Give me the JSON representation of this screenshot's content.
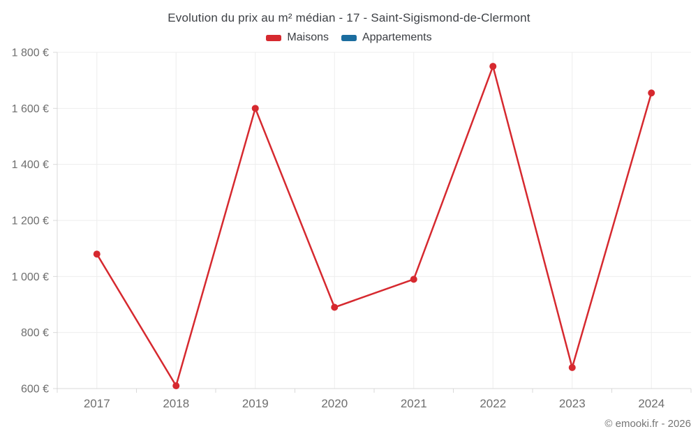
{
  "title": "Evolution du prix au m² médian - 17 - Saint-Sigismond-de-Clermont",
  "legend": [
    {
      "label": "Maisons",
      "color": "#d6292f"
    },
    {
      "label": "Appartements",
      "color": "#1b6d9f"
    }
  ],
  "footer": "© emooki.fr - 2026",
  "chart_data": {
    "type": "line",
    "title": "Evolution du prix au m² médian - 17 - Saint-Sigismond-de-Clermont",
    "categories": [
      "2017",
      "2018",
      "2019",
      "2020",
      "2021",
      "2022",
      "2023",
      "2024"
    ],
    "series": [
      {
        "name": "Maisons",
        "color": "#d6292f",
        "values": [
          1080,
          610,
          1600,
          890,
          990,
          1750,
          675,
          1655
        ]
      },
      {
        "name": "Appartements",
        "color": "#1b6d9f",
        "values": []
      }
    ],
    "xlabel": "",
    "ylabel": "",
    "ylim": [
      600,
      1800
    ],
    "ytick_step": 200,
    "ytick_labels": [
      "600 €",
      "800 €",
      "1 000 €",
      "1 200 €",
      "1 400 €",
      "1 600 €",
      "1 800 €"
    ],
    "grid": true,
    "legend_position": "top",
    "colors": {
      "gridline": "#ededed",
      "axis": "#d9d9d9",
      "tick_label": "#6e6e6e"
    }
  }
}
